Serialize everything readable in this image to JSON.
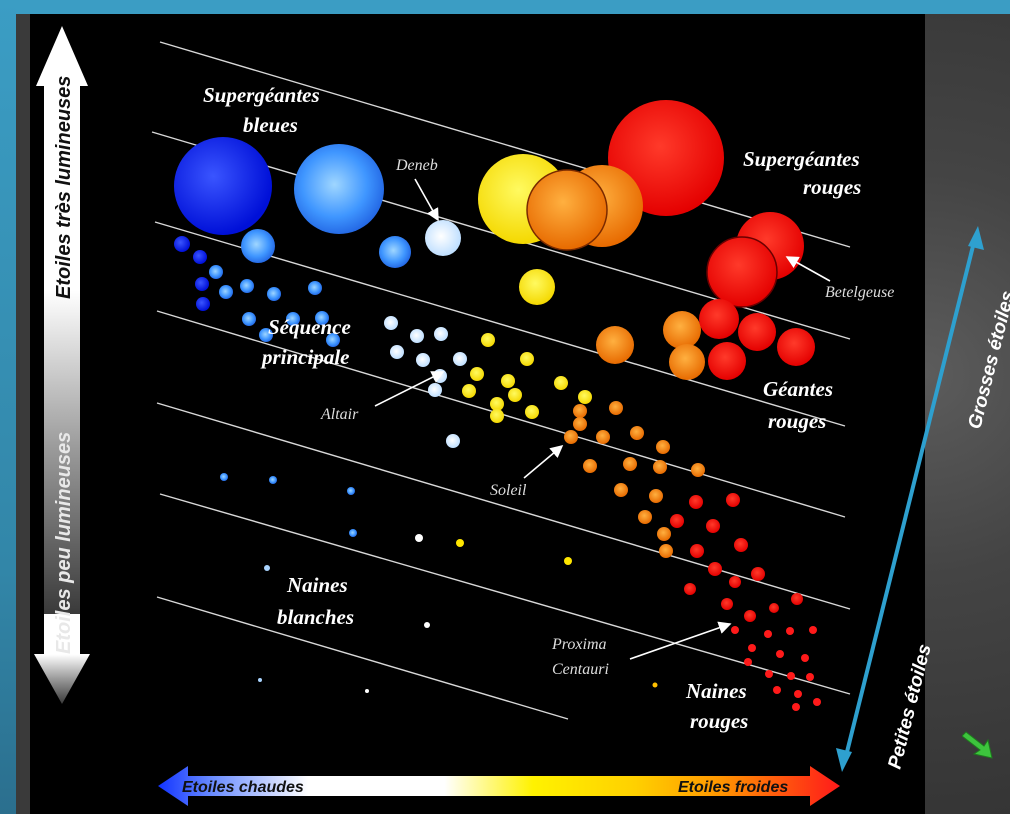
{
  "left_axis": {
    "top_label": "Etoiles très lumineuses",
    "bottom_label": "Etoiles peu lumineuses"
  },
  "bottom_axis": {
    "left_label": "Etoiles chaudes",
    "right_label": "Etoiles froides"
  },
  "right_axis": {
    "top_label": "Grosses étoiles",
    "bottom_label": "Petites étoiles"
  },
  "regions": {
    "blue_supergiants": [
      "Supergéantes",
      "bleues"
    ],
    "red_supergiants": [
      "Supergéantes",
      "rouges"
    ],
    "main_sequence": [
      "Séquence",
      "principale"
    ],
    "red_giants": [
      "Géantes",
      "rouges"
    ],
    "white_dwarfs": [
      "Naines",
      "blanches"
    ],
    "red_dwarfs": [
      "Naines",
      "rouges"
    ]
  },
  "named_stars": {
    "deneb": "Deneb",
    "betelgeuse": "Betelgeuse",
    "altair": "Altair",
    "sun": "Soleil",
    "proxima": [
      "Proxima",
      "Centauri"
    ]
  },
  "colors": {
    "blue": "#1a2cff",
    "light_blue": "#4aa8ff",
    "white": "#f2f6ff",
    "yellow": "#ffee00",
    "orange": "#ff9a00",
    "red": "#ff1010",
    "frame_accent": "#3b9dc4"
  }
}
